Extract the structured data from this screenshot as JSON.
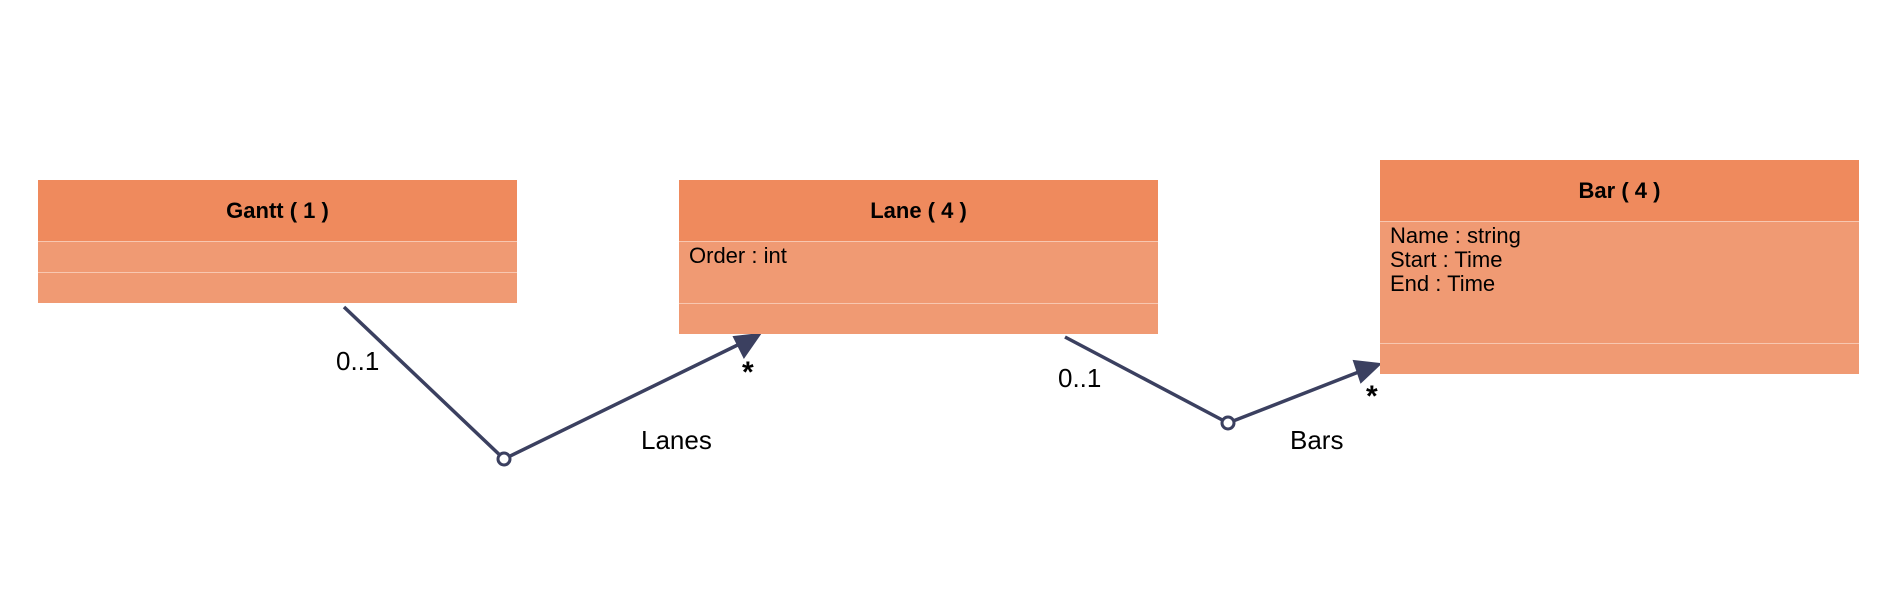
{
  "diagram": {
    "classes": [
      {
        "id": "gantt",
        "name": "Gantt ( 1 )",
        "attributes": []
      },
      {
        "id": "lane",
        "name": "Lane ( 4 )",
        "attributes": [
          "Order : int"
        ]
      },
      {
        "id": "bar",
        "name": "Bar ( 4 )",
        "attributes": [
          "Name : string",
          "Start : Time",
          "End : Time"
        ]
      }
    ],
    "associations": [
      {
        "name": "Lanes",
        "source_multiplicity": "0..1",
        "target_multiplicity": "*"
      },
      {
        "name": "Bars",
        "source_multiplicity": "0..1",
        "target_multiplicity": "*"
      }
    ],
    "colors": {
      "class_header": "#ef8a5d",
      "class_body": "#f09a73",
      "connector": "#3b4060"
    }
  }
}
